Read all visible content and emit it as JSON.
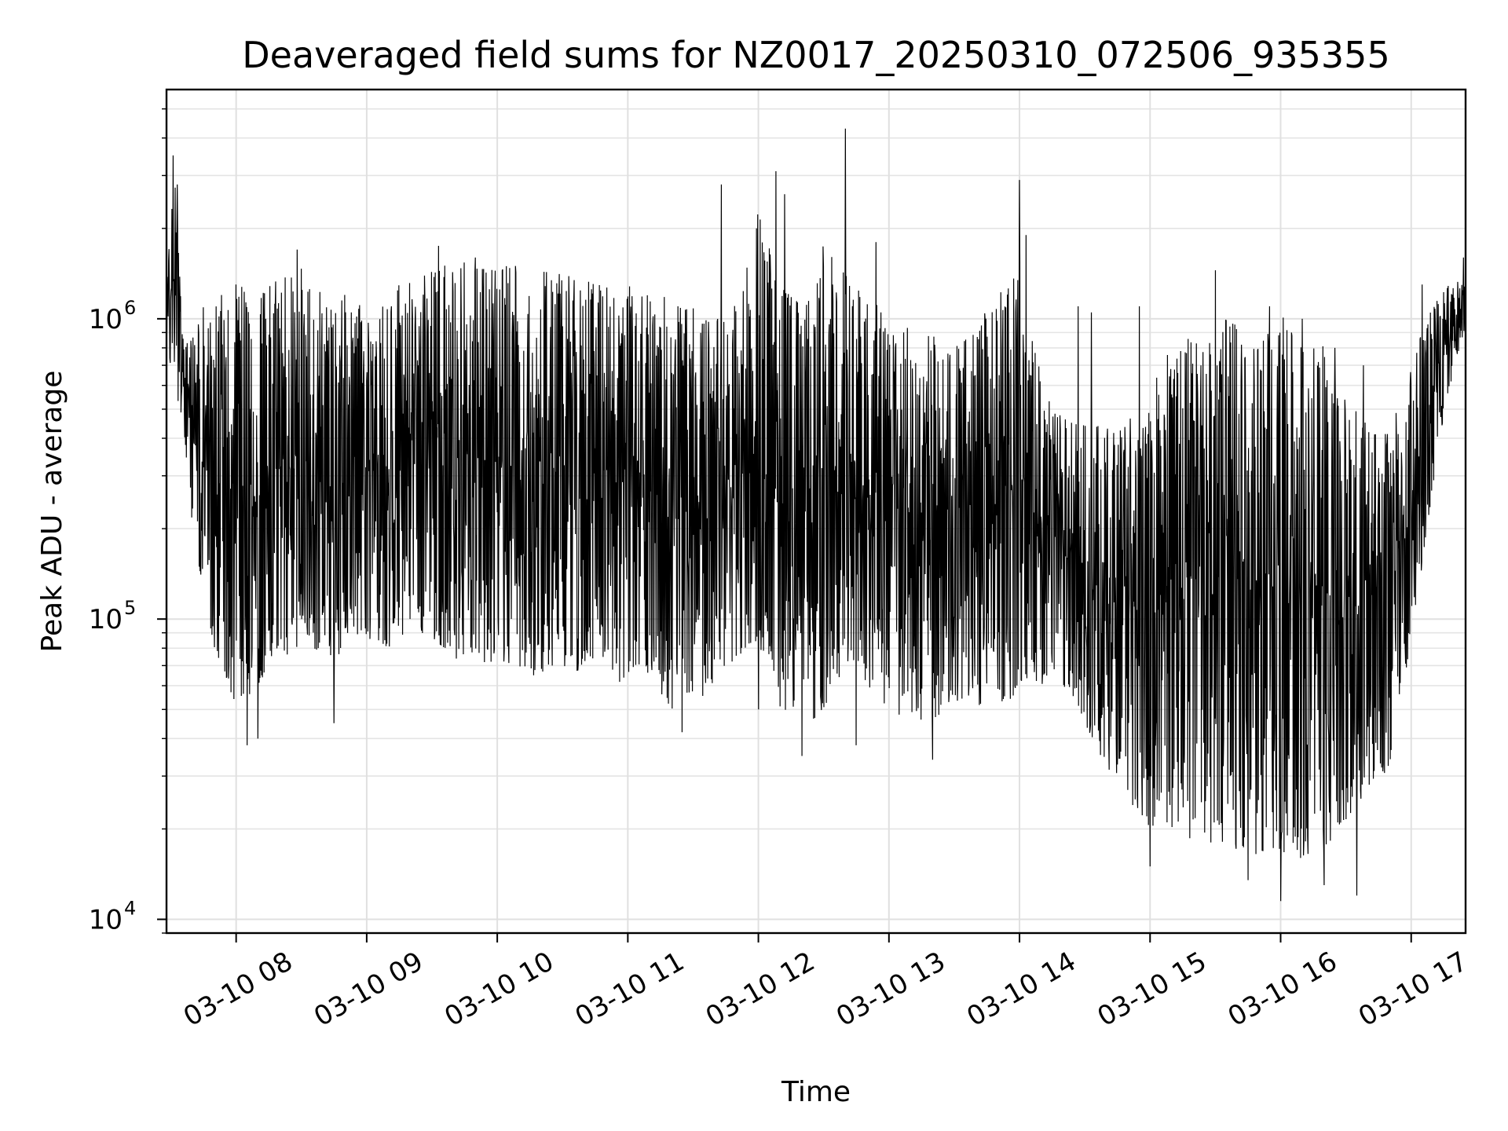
{
  "chart_data": {
    "type": "line",
    "title": "Deaveraged field sums for NZ0017_20250310_072506_935355",
    "xlabel": "Time",
    "ylabel": "Peak ADU - average",
    "yscale": "log",
    "ylim": [
      9000,
      5800000
    ],
    "xlim": [
      "2025-03-10 07:28",
      "2025-03-10 17:25"
    ],
    "grid": true,
    "line_color": "#000000",
    "x_ticks": [
      "03-10 08",
      "03-10 09",
      "03-10 10",
      "03-10 11",
      "03-10 12",
      "03-10 13",
      "03-10 14",
      "03-10 15",
      "03-10 16",
      "03-10 17"
    ],
    "y_ticks": [
      {
        "value": 10000,
        "base": "10",
        "exp": "4"
      },
      {
        "value": 100000,
        "base": "10",
        "exp": "5"
      },
      {
        "value": 1000000,
        "base": "10",
        "exp": "6"
      }
    ],
    "series": [
      {
        "x": [
          "07:28",
          "07:30",
          "07:32",
          "07:35",
          "07:38",
          "07:40",
          "07:45",
          "07:50",
          "07:55",
          "08:00",
          "08:05",
          "08:10",
          "08:15",
          "08:20",
          "08:25",
          "08:30",
          "08:35",
          "08:40",
          "08:45",
          "08:50",
          "08:55",
          "09:00",
          "09:05",
          "09:10",
          "09:15",
          "09:20",
          "09:25",
          "09:30",
          "09:35",
          "09:40",
          "09:45",
          "09:50",
          "09:55",
          "10:00",
          "10:05",
          "10:10",
          "10:15",
          "10:20",
          "10:25",
          "10:30",
          "10:35",
          "10:40",
          "10:45",
          "10:50",
          "10:55",
          "11:00",
          "11:05",
          "11:10",
          "11:15",
          "11:20",
          "11:25",
          "11:30",
          "11:35",
          "11:40",
          "11:45",
          "11:50",
          "11:55",
          "12:00",
          "12:05",
          "12:10",
          "12:15",
          "12:20",
          "12:25",
          "12:30",
          "12:35",
          "12:40",
          "12:45",
          "12:50",
          "12:55",
          "13:00",
          "13:05",
          "13:10",
          "13:15",
          "13:20",
          "13:25",
          "13:30",
          "13:35",
          "13:40",
          "13:45",
          "13:50",
          "13:55",
          "14:00",
          "14:05",
          "14:10",
          "14:15",
          "14:20",
          "14:25",
          "14:30",
          "14:35",
          "14:40",
          "14:45",
          "14:50",
          "14:55",
          "15:00",
          "15:05",
          "15:10",
          "15:15",
          "15:20",
          "15:25",
          "15:30",
          "15:35",
          "15:40",
          "15:45",
          "15:50",
          "15:55",
          "16:00",
          "16:05",
          "16:10",
          "16:15",
          "16:20",
          "16:25",
          "16:30",
          "16:35",
          "16:40",
          "16:45",
          "16:50",
          "16:55",
          "17:00",
          "17:05",
          "17:10",
          "17:15",
          "17:20",
          "17:25"
        ],
        "low": [
          700000,
          650000,
          600000,
          450000,
          300000,
          200000,
          120000,
          80000,
          65000,
          50000,
          55000,
          60000,
          70000,
          80000,
          70000,
          90000,
          80000,
          75000,
          70000,
          85000,
          90000,
          80000,
          85000,
          80000,
          90000,
          85000,
          90000,
          85000,
          80000,
          75000,
          70000,
          80000,
          70000,
          75000,
          70000,
          70000,
          65000,
          65000,
          70000,
          70000,
          65000,
          70000,
          75000,
          65000,
          60000,
          65000,
          70000,
          65000,
          55000,
          50000,
          55000,
          50000,
          55000,
          60000,
          65000,
          70000,
          80000,
          80000,
          75000,
          50000,
          45000,
          40000,
          45000,
          50000,
          60000,
          70000,
          70000,
          60000,
          55000,
          50000,
          45000,
          45000,
          45000,
          45000,
          50000,
          55000,
          50000,
          50000,
          55000,
          55000,
          50000,
          60000,
          65000,
          60000,
          70000,
          60000,
          55000,
          45000,
          38000,
          32000,
          28000,
          25000,
          22000,
          20000,
          20000,
          20000,
          19000,
          18000,
          18000,
          18000,
          18000,
          17000,
          17000,
          16000,
          17000,
          17000,
          16000,
          16000,
          17000,
          17000,
          19000,
          21000,
          24000,
          27000,
          28000,
          33000,
          48000,
          90000,
          150000,
          260000,
          470000,
          700000,
          900000
        ],
        "high": [
          1200000,
          2500000,
          3000000,
          1000000,
          800000,
          900000,
          1100000,
          1200000,
          1200000,
          1300000,
          1300000,
          1200000,
          1300000,
          1350000,
          1400000,
          1500000,
          1300000,
          1200000,
          1250000,
          1200000,
          1100000,
          1150000,
          1200000,
          1250000,
          1300000,
          1350000,
          1400000,
          1450000,
          1500000,
          1550000,
          1550000,
          1500000,
          1500000,
          1550000,
          1500000,
          1500000,
          1450000,
          1500000,
          1450000,
          1400000,
          1400000,
          1350000,
          1300000,
          1300000,
          1250000,
          1300000,
          1250000,
          1200000,
          1200000,
          1150000,
          1100000,
          1100000,
          1000000,
          1000000,
          1000000,
          1200000,
          1500000,
          2300000,
          1800000,
          1300000,
          1200000,
          1100000,
          1200000,
          1800000,
          1600000,
          1400000,
          1300000,
          1200000,
          1100000,
          1000000,
          900000,
          950000,
          900000,
          900000,
          850000,
          800000,
          850000,
          900000,
          1100000,
          1200000,
          1300000,
          1600000,
          900000,
          650000,
          500000,
          480000,
          450000,
          460000,
          450000,
          440000,
          430000,
          460000,
          500000,
          550000,
          700000,
          800000,
          900000,
          850000,
          800000,
          900000,
          1000000,
          950000,
          900000,
          850000,
          900000,
          1100000,
          900000,
          850000,
          900000,
          800000,
          700000,
          600000,
          500000,
          450000,
          400000,
          430000,
          550000,
          700000,
          900000,
          1100000,
          1250000,
          1350000,
          1300000
        ],
        "spikes": [
          {
            "x": "07:31",
            "y": 3500000
          },
          {
            "x": "07:33",
            "y": 2800000
          },
          {
            "x": "08:00",
            "y": 1300000
          },
          {
            "x": "08:28",
            "y": 1700000
          },
          {
            "x": "09:33",
            "y": 1750000
          },
          {
            "x": "09:50",
            "y": 1600000
          },
          {
            "x": "11:43",
            "y": 2800000
          },
          {
            "x": "12:08",
            "y": 3100000
          },
          {
            "x": "12:12",
            "y": 2600000
          },
          {
            "x": "12:40",
            "y": 4300000
          },
          {
            "x": "12:54",
            "y": 1800000
          },
          {
            "x": "14:00",
            "y": 2900000
          },
          {
            "x": "14:03",
            "y": 1900000
          },
          {
            "x": "14:27",
            "y": 1100000
          },
          {
            "x": "14:33",
            "y": 1050000
          },
          {
            "x": "14:55",
            "y": 1100000
          },
          {
            "x": "15:30",
            "y": 1450000
          },
          {
            "x": "15:45",
            "y": 1000000
          },
          {
            "x": "15:55",
            "y": 1100000
          },
          {
            "x": "16:10",
            "y": 1000000
          },
          {
            "x": "16:25",
            "y": 800000
          },
          {
            "x": "16:38",
            "y": 700000
          },
          {
            "x": "17:05",
            "y": 1300000
          },
          {
            "x": "17:24",
            "y": 1600000
          }
        ],
        "dips": [
          {
            "x": "08:05",
            "y": 38000
          },
          {
            "x": "08:10",
            "y": 40000
          },
          {
            "x": "08:45",
            "y": 45000
          },
          {
            "x": "11:25",
            "y": 42000
          },
          {
            "x": "12:00",
            "y": 50000
          },
          {
            "x": "12:20",
            "y": 35000
          },
          {
            "x": "12:45",
            "y": 38000
          },
          {
            "x": "13:20",
            "y": 34000
          },
          {
            "x": "15:00",
            "y": 15000
          },
          {
            "x": "15:45",
            "y": 13500
          },
          {
            "x": "16:00",
            "y": 11500
          },
          {
            "x": "16:20",
            "y": 13000
          },
          {
            "x": "16:35",
            "y": 12000
          }
        ]
      }
    ]
  }
}
